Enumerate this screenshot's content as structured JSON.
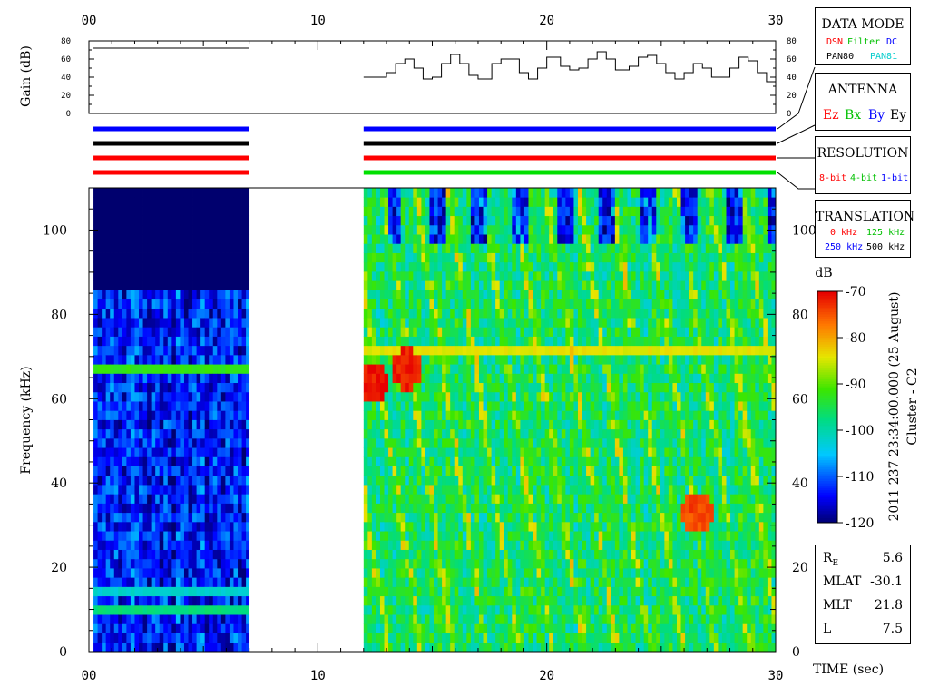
{
  "chart_data": [
    {
      "type": "line",
      "panel": "gain",
      "ylabel": "Gain (dB)",
      "ylim": [
        0,
        80
      ],
      "yticks": [
        0,
        20,
        40,
        60,
        80
      ],
      "xlim": [
        0,
        30
      ],
      "xticks": [
        "00",
        "10",
        "20",
        "30"
      ],
      "segments": [
        {
          "t": [
            0.2,
            7.0
          ],
          "gain": [
            72,
            72
          ]
        },
        {
          "t": [
            12.0,
            12.7,
            13.0,
            13.4,
            13.8,
            14.2,
            14.6,
            15.0,
            15.4,
            15.8,
            16.2,
            16.6,
            17.0,
            17.6,
            18.0,
            18.4,
            18.8,
            19.2,
            19.6,
            20.0,
            20.6,
            21.0,
            21.4,
            21.8,
            22.2,
            22.6,
            23.0,
            23.6,
            24.0,
            24.4,
            24.8,
            25.2,
            25.6,
            26.0,
            26.4,
            26.8,
            27.2,
            27.6,
            28.0,
            28.4,
            28.8,
            29.2,
            29.6,
            30.0
          ],
          "gain": [
            40,
            40,
            45,
            55,
            60,
            50,
            38,
            40,
            55,
            65,
            55,
            42,
            38,
            55,
            60,
            60,
            45,
            38,
            50,
            62,
            52,
            48,
            50,
            60,
            68,
            60,
            48,
            52,
            62,
            64,
            55,
            45,
            38,
            45,
            55,
            50,
            40,
            40,
            50,
            62,
            58,
            45,
            35,
            50
          ]
        }
      ]
    },
    {
      "type": "heatmap",
      "panel": "spectrogram",
      "xlabel": "TIME (sec)",
      "ylabel": "Frequency (kHz)",
      "xlim": [
        0,
        30
      ],
      "xticks": [
        "00",
        "10",
        "20",
        "30"
      ],
      "ylim": [
        0,
        110
      ],
      "yticks": [
        0,
        20,
        40,
        60,
        80,
        100
      ],
      "colorbar": {
        "label": "dB",
        "min": -120,
        "max": -70,
        "ticks": [
          "-70",
          "-80",
          "-90",
          "-100",
          "-110",
          "-120"
        ]
      },
      "data_intervals": [
        {
          "t": [
            0.2,
            7.0
          ],
          "background_level_db": -113,
          "upper_band_kHz": [
            84,
            110
          ],
          "upper_band_level_db": -122,
          "lines": [
            {
              "freq_kHz": 65.5,
              "level_db": -92
            },
            {
              "freq_kHz": 9,
              "level_db": -97
            },
            {
              "freq_kHz": 13,
              "level_db": -102
            }
          ]
        },
        {
          "t": [
            12.0,
            30.0
          ],
          "background_level_db": -96,
          "lines": [
            {
              "freq_kHz": 71,
              "level_db": -84
            }
          ],
          "hotspots": [
            {
              "t": 12.3,
              "freq_kHz": 63,
              "level_db": -71
            },
            {
              "t": 13.8,
              "freq_kHz": 66,
              "level_db": -72
            },
            {
              "t": 26.5,
              "freq_kHz": 32,
              "level_db": -74
            }
          ]
        }
      ]
    }
  ],
  "title_axis_text": "2011 237 23:34:00.000 (25 August)",
  "spacecraft_text": "Cluster - C2",
  "status_bars": {
    "segments_t": [
      [
        0.2,
        7.0
      ],
      [
        12.0,
        30.0
      ]
    ],
    "rows": [
      {
        "name": "antenna",
        "colors": [
          "#0000ff",
          "#0000ff"
        ]
      },
      {
        "name": "data-mode",
        "colors": [
          "#000000",
          "#000000"
        ]
      },
      {
        "name": "resolution",
        "colors": [
          "#ff0000",
          "#ff0000"
        ]
      },
      {
        "name": "translation",
        "colors": [
          "#ff0000",
          "#00e000"
        ]
      }
    ]
  },
  "legends": {
    "data_mode": {
      "title": "DATA MODE",
      "items": [
        {
          "text": "DSN",
          "color": "#ff0000"
        },
        {
          "text": "Filter",
          "color": "#00c000"
        },
        {
          "text": "DC",
          "color": "#0000ff"
        },
        {
          "text": "PAN80",
          "color": "#000000"
        },
        {
          "text": "PAN81",
          "color": "#00cccc"
        }
      ]
    },
    "antenna": {
      "title": "ANTENNA",
      "items": [
        {
          "text": "Ez",
          "color": "#ff0000"
        },
        {
          "text": "Bx",
          "color": "#00c000"
        },
        {
          "text": "By",
          "color": "#0000ff"
        },
        {
          "text": "Ey",
          "color": "#000000"
        }
      ]
    },
    "resolution": {
      "title": "RESOLUTION",
      "items": [
        {
          "text": "8-bit",
          "color": "#ff0000"
        },
        {
          "text": "4-bit",
          "color": "#00c000"
        },
        {
          "text": "1-bit",
          "color": "#0000ff"
        }
      ]
    },
    "translation": {
      "title": "TRANSLATION",
      "items": [
        {
          "text": "0 kHz",
          "color": "#ff0000"
        },
        {
          "text": "125 kHz",
          "color": "#00c000"
        },
        {
          "text": "250 kHz",
          "color": "#0000ff"
        },
        {
          "text": "500 kHz",
          "color": "#000000"
        }
      ]
    }
  },
  "position": {
    "re_label": "R",
    "re_sub": "E",
    "re_value": "5.6",
    "mlat_label": "MLAT",
    "mlat_value": "-30.1",
    "mlt_label": "MLT",
    "mlt_value": "21.8",
    "l_label": "L",
    "l_value": "7.5"
  }
}
